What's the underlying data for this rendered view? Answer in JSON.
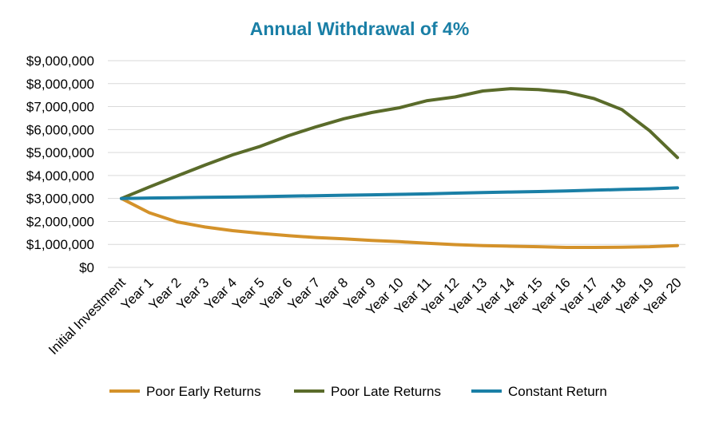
{
  "chart_data": {
    "type": "line",
    "title": "Annual Withdrawal of 4%",
    "xlabel": "",
    "ylabel": "",
    "categories": [
      "Initial Investment",
      "Year 1",
      "Year 2",
      "Year 3",
      "Year 4",
      "Year 5",
      "Year 6",
      "Year 7",
      "Year 8",
      "Year 9",
      "Year 10",
      "Year 11",
      "Year 12",
      "Year 13",
      "Year 14",
      "Year 15",
      "Year 16",
      "Year 17",
      "Year 18",
      "Year 19",
      "Year 20"
    ],
    "ylim": [
      0,
      9000000
    ],
    "y_ticks": [
      0,
      1000000,
      2000000,
      3000000,
      4000000,
      5000000,
      6000000,
      7000000,
      8000000,
      9000000
    ],
    "y_tick_labels": [
      "$0",
      "$1,000,000",
      "$2,000,000",
      "$3,000,000",
      "$4,000,000",
      "$5,000,000",
      "$6,000,000",
      "$7,000,000",
      "$8,000,000",
      "$9,000,000"
    ],
    "grid": true,
    "legend_position": "bottom",
    "series": [
      {
        "name": "Poor Early Returns",
        "color": "#D4922A",
        "values": [
          3000000,
          2380000,
          1980000,
          1760000,
          1600000,
          1480000,
          1380000,
          1300000,
          1240000,
          1170000,
          1120000,
          1050000,
          990000,
          950000,
          920000,
          900000,
          870000,
          870000,
          880000,
          900000,
          950000
        ]
      },
      {
        "name": "Poor Late Returns",
        "color": "#5A6B2A",
        "values": [
          3000000,
          3500000,
          3980000,
          4450000,
          4900000,
          5270000,
          5730000,
          6120000,
          6470000,
          6740000,
          6950000,
          7260000,
          7420000,
          7680000,
          7780000,
          7740000,
          7630000,
          7350000,
          6870000,
          5950000,
          4780000
        ]
      },
      {
        "name": "Constant Return",
        "color": "#1A7FA6",
        "values": [
          3000000,
          3020000,
          3030000,
          3050000,
          3060000,
          3080000,
          3100000,
          3120000,
          3140000,
          3160000,
          3180000,
          3200000,
          3230000,
          3260000,
          3280000,
          3300000,
          3330000,
          3360000,
          3390000,
          3420000,
          3460000
        ]
      }
    ]
  },
  "colors": {
    "title": "#1A7FA6",
    "grid": "#D9D9D9"
  }
}
